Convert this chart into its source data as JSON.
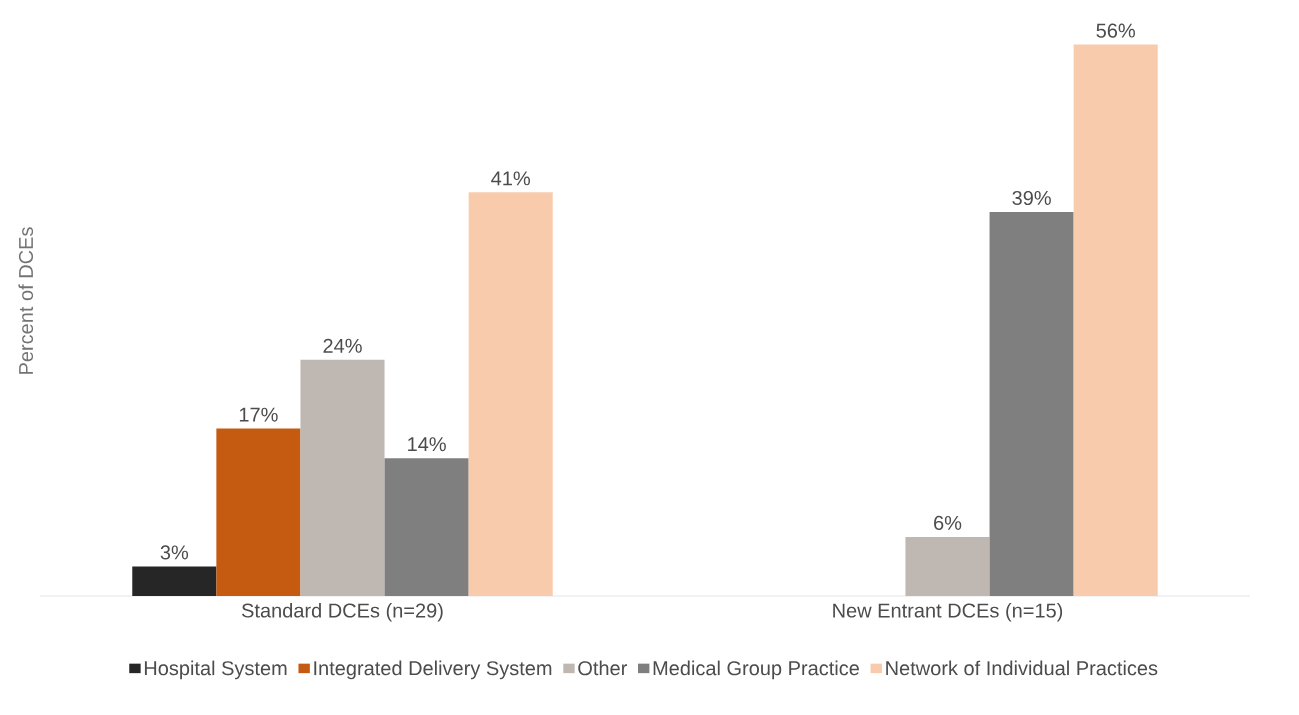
{
  "chart_data": {
    "type": "bar",
    "ylabel": "Percent of DCEs",
    "categories": [
      "Standard DCEs (n=29)",
      "New Entrant DCEs (n=15)"
    ],
    "tick_labels": "x",
    "legend": "bottom",
    "series": [
      {
        "name": "Hospital System",
        "color": "#262626",
        "values": [
          3,
          null
        ],
        "value_labels": [
          "3%",
          null
        ]
      },
      {
        "name": "Integrated Delivery System",
        "color": "#c55a11",
        "values": [
          17,
          null
        ],
        "value_labels": [
          "17%",
          null
        ]
      },
      {
        "name": "Other",
        "color": "#bfb8b2",
        "values": [
          24,
          6
        ],
        "value_labels": [
          "24%",
          "6%"
        ]
      },
      {
        "name": "Medical Group Practice",
        "color": "#7f7f7f",
        "values": [
          14,
          39
        ],
        "value_labels": [
          "14%",
          "39%"
        ]
      },
      {
        "name": "Network of Individual Practices",
        "color": "#f8cbad",
        "values": [
          41,
          56
        ],
        "value_labels": [
          "41%",
          "56%"
        ]
      }
    ]
  }
}
